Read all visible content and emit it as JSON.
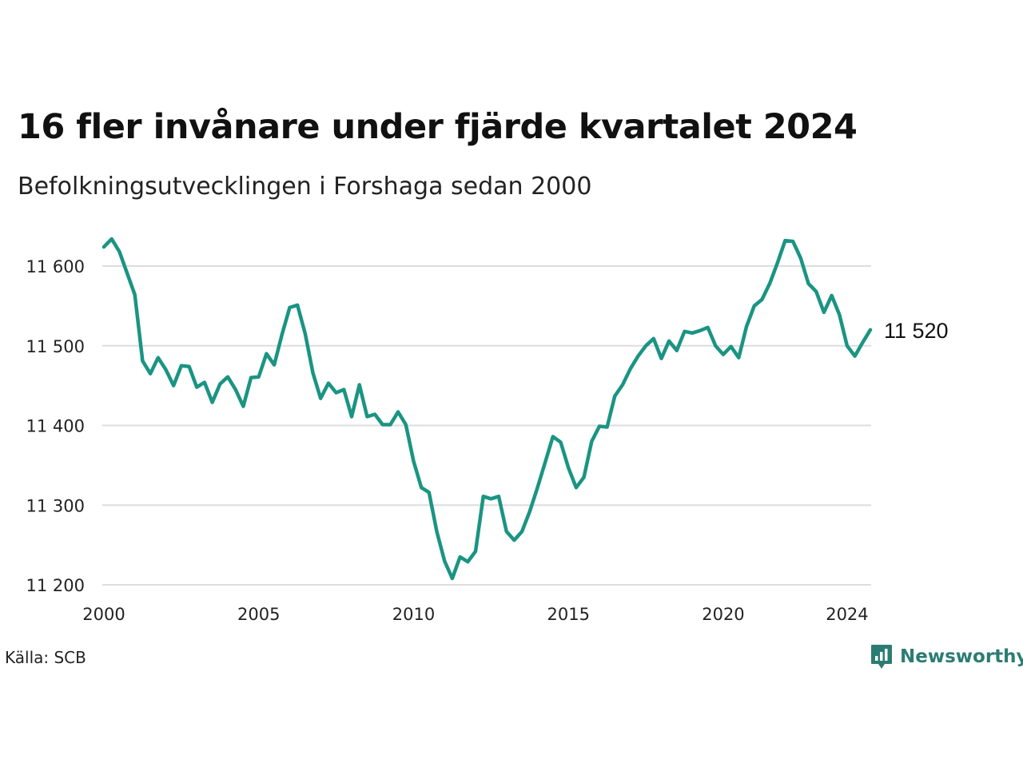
{
  "header": {
    "title": "16 fler invånare under fjärde kvartalet 2024",
    "subtitle": "Befolkningsutvecklingen i Forshaga sedan 2000"
  },
  "footer": {
    "source": "Källa: SCB",
    "brand": "Newsworthy",
    "brand_icon": "newsworthy-logo-icon"
  },
  "colors": {
    "line": "#1a9483",
    "grid": "#dddddd",
    "brand": "#2c7c73"
  },
  "chart_data": {
    "type": "line",
    "title": "16 fler invånare under fjärde kvartalet 2024",
    "subtitle": "Befolkningsutvecklingen i Forshaga sedan 2000",
    "xlabel": "",
    "ylabel": "",
    "xlim": [
      2000,
      2024.75
    ],
    "ylim": [
      11200,
      11650
    ],
    "x_ticks": [
      2000,
      2005,
      2010,
      2015,
      2020,
      2024
    ],
    "y_ticks": [
      11200,
      11300,
      11400,
      11500,
      11600
    ],
    "y_tick_labels": [
      "11 200",
      "11 300",
      "11 400",
      "11 500",
      "11 600"
    ],
    "grid": "horizontal",
    "last_value_label": "11 520",
    "x": [
      2000.0,
      2000.25,
      2000.5,
      2000.75,
      2001.0,
      2001.25,
      2001.5,
      2001.75,
      2002.0,
      2002.25,
      2002.5,
      2002.75,
      2003.0,
      2003.25,
      2003.5,
      2003.75,
      2004.0,
      2004.25,
      2004.5,
      2004.75,
      2005.0,
      2005.25,
      2005.5,
      2005.75,
      2006.0,
      2006.25,
      2006.5,
      2006.75,
      2007.0,
      2007.25,
      2007.5,
      2007.75,
      2008.0,
      2008.25,
      2008.5,
      2008.75,
      2009.0,
      2009.25,
      2009.5,
      2009.75,
      2010.0,
      2010.25,
      2010.5,
      2010.75,
      2011.0,
      2011.25,
      2011.5,
      2011.75,
      2012.0,
      2012.25,
      2012.5,
      2012.75,
      2013.0,
      2013.25,
      2013.5,
      2013.75,
      2014.0,
      2014.25,
      2014.5,
      2014.75,
      2015.0,
      2015.25,
      2015.5,
      2015.75,
      2016.0,
      2016.25,
      2016.5,
      2016.75,
      2017.0,
      2017.25,
      2017.5,
      2017.75,
      2018.0,
      2018.25,
      2018.5,
      2018.75,
      2019.0,
      2019.25,
      2019.5,
      2019.75,
      2020.0,
      2020.25,
      2020.5,
      2020.75,
      2021.0,
      2021.25,
      2021.5,
      2021.75,
      2022.0,
      2022.25,
      2022.5,
      2022.75,
      2023.0,
      2023.25,
      2023.5,
      2023.75,
      2024.0,
      2024.25,
      2024.5,
      2024.75
    ],
    "series": [
      {
        "name": "",
        "values": [
          11624,
          11634,
          11618,
          11591,
          11564,
          11481,
          11465,
          11485,
          11470,
          11450,
          11475,
          11474,
          11448,
          11454,
          11429,
          11452,
          11461,
          11445,
          11424,
          11460,
          11461,
          11490,
          11476,
          11514,
          11548,
          11551,
          11515,
          11466,
          11434,
          11453,
          11441,
          11445,
          11411,
          11451,
          11411,
          11414,
          11401,
          11401,
          11417,
          11401,
          11355,
          11322,
          11316,
          11267,
          11230,
          11208,
          11235,
          11229,
          11242,
          11311,
          11308,
          11311,
          11267,
          11256,
          11267,
          11292,
          11322,
          11354,
          11386,
          11379,
          11347,
          11322,
          11335,
          11380,
          11399,
          11398,
          11437,
          11451,
          11471,
          11487,
          11500,
          11509,
          11484,
          11506,
          11494,
          11518,
          11516,
          11519,
          11523,
          11500,
          11489,
          11499,
          11485,
          11524,
          11550,
          11558,
          11578,
          11604,
          11632,
          11631,
          11610,
          11578,
          11568,
          11542,
          11563,
          11539,
          11500,
          11487,
          11504,
          11520
        ]
      }
    ]
  }
}
